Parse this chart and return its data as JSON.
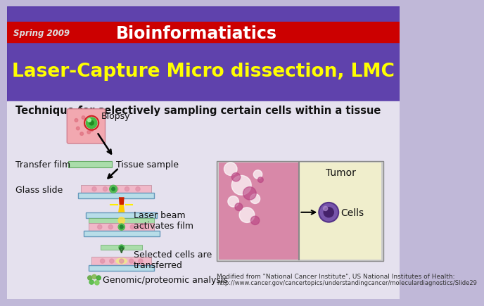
{
  "title_main": "Laser-Capture Micro dissection, LMC",
  "subtitle": "Technique for selectively sampling certain cells within a tissue",
  "header_label": "Spring 2009",
  "header_title": "Bioinformatiatics",
  "header_bg": "#cc0000",
  "header_text_color": "#ffffff",
  "header_label_color": "#dddddd",
  "title_color": "#ffff00",
  "bg_full": "#c0b8d8",
  "bg_upper_purple": "#5533aa",
  "bg_lower_white": "#e8e8f0",
  "labels": {
    "biopsy": "Biopsy",
    "tissue_sample": "Tissue sample",
    "transfer_film": "Transfer film",
    "glass_slide": "Glass slide",
    "laser_beam": "Laser beam\nactivates film",
    "selected_cells": "Selected cells are\ntransferred",
    "genomic": "Genomic/proteomic analysis",
    "tumor": "Tumor",
    "cells": "Cells",
    "modified": "Modified from \"National Cancer Institute\", US National Institutes of Health:",
    "url": "http://www.cancer.gov/cancertopics/understandingcancer/moleculardiagnostics/Slide29"
  },
  "film_color": "#aaddaa",
  "glass_color": "#b8dde8",
  "tissue_color": "#f0b8c8",
  "laser_red": "#dd2200",
  "laser_yellow": "#ffdd00"
}
